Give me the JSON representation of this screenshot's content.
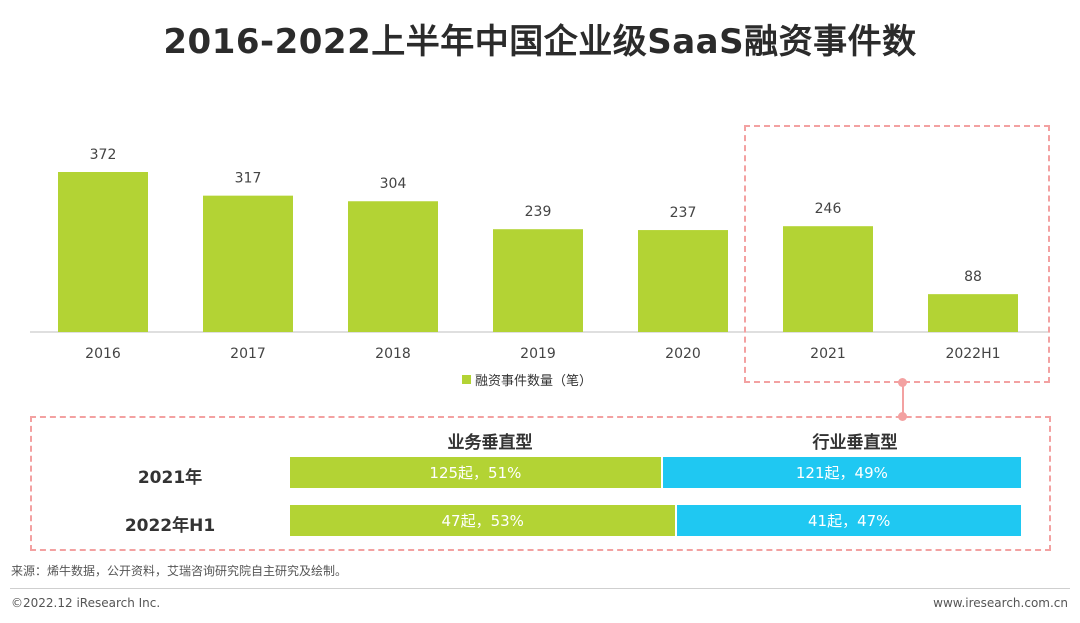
{
  "title": "2016-2022上半年中国企业级SaaS融资事件数",
  "chart_data": {
    "type": "bar",
    "categories": [
      "2016",
      "2017",
      "2018",
      "2019",
      "2020",
      "2021",
      "2022H1"
    ],
    "series": [
      {
        "name": "融资事件数量（笔）",
        "values": [
          372,
          317,
          304,
          239,
          237,
          246,
          88
        ]
      }
    ],
    "value_labels": [
      "372",
      "317",
      "304",
      "239",
      "237",
      "246",
      "88"
    ],
    "ylim": [
      0,
      400
    ],
    "grid": false,
    "legend_position": "bottom-center",
    "bar_color": "#b3d334"
  },
  "legend": {
    "label": "融资事件数量（笔）"
  },
  "breakdown": {
    "columns": [
      "业务垂直型",
      "行业垂直型"
    ],
    "colors": [
      "#b3d334",
      "#1fc8f2"
    ],
    "rows": [
      {
        "label": "2021年",
        "a_share": 51,
        "a_text": "125起，51%",
        "b_share": 49,
        "b_text": "121起，49%"
      },
      {
        "label": "2022年H1",
        "a_share": 53,
        "a_text": "47起，53%",
        "b_share": 47,
        "b_text": "41起，47%"
      }
    ]
  },
  "highlight_color": "#f3a1a1",
  "source": "来源：烯牛数据，公开资料，艾瑞咨询研究院自主研究及绘制。",
  "copyright": "©2022.12 iResearch Inc.",
  "website": "www.iresearch.com.cn"
}
